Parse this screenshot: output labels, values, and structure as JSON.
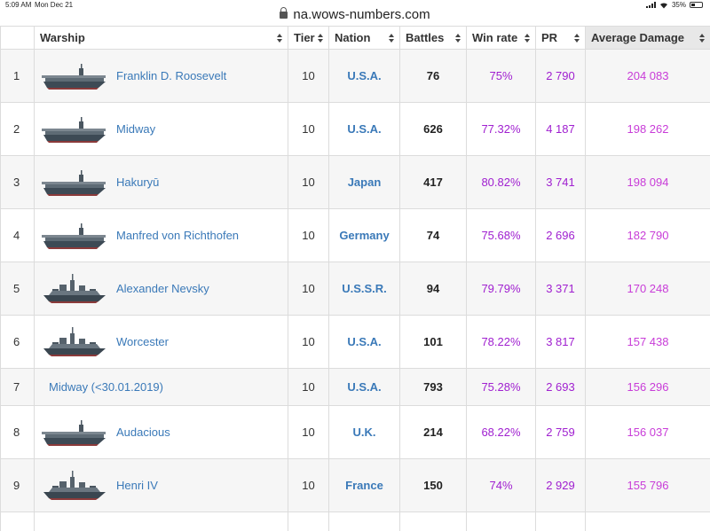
{
  "status_bar": {
    "time": "5:09 AM",
    "date": "Mon Dec 21",
    "battery": "35%",
    "battery_level": 0.35
  },
  "browser": {
    "url": "na.wows-numbers.com"
  },
  "table": {
    "headers": {
      "warship": "Warship",
      "tier": "Tier",
      "nation": "Nation",
      "battles": "Battles",
      "win_rate": "Win rate",
      "pr": "PR",
      "average_damage": "Average Damage"
    },
    "rows": [
      {
        "rank": "1",
        "warship": "Franklin D. Roosevelt",
        "ship_type": "carrier",
        "tier": "10",
        "nation": "U.S.A.",
        "battles": "76",
        "win_rate": "75%",
        "pr": "2 790",
        "average_damage": "204 083"
      },
      {
        "rank": "2",
        "warship": "Midway",
        "ship_type": "carrier",
        "tier": "10",
        "nation": "U.S.A.",
        "battles": "626",
        "win_rate": "77.32%",
        "pr": "4 187",
        "average_damage": "198 262"
      },
      {
        "rank": "3",
        "warship": "Hakuryū",
        "ship_type": "carrier",
        "tier": "10",
        "nation": "Japan",
        "battles": "417",
        "win_rate": "80.82%",
        "pr": "3 741",
        "average_damage": "198 094"
      },
      {
        "rank": "4",
        "warship": "Manfred von Richthofen",
        "ship_type": "carrier",
        "tier": "10",
        "nation": "Germany",
        "battles": "74",
        "win_rate": "75.68%",
        "pr": "2 696",
        "average_damage": "182 790"
      },
      {
        "rank": "5",
        "warship": "Alexander Nevsky",
        "ship_type": "cruiser",
        "tier": "10",
        "nation": "U.S.S.R.",
        "battles": "94",
        "win_rate": "79.79%",
        "pr": "3 371",
        "average_damage": "170 248"
      },
      {
        "rank": "6",
        "warship": "Worcester",
        "ship_type": "cruiser",
        "tier": "10",
        "nation": "U.S.A.",
        "battles": "101",
        "win_rate": "78.22%",
        "pr": "3 817",
        "average_damage": "157 438"
      },
      {
        "rank": "7",
        "warship": "Midway (<30.01.2019)",
        "ship_type": "none",
        "tier": "10",
        "nation": "U.S.A.",
        "battles": "793",
        "win_rate": "75.28%",
        "pr": "2 693",
        "average_damage": "156 296"
      },
      {
        "rank": "8",
        "warship": "Audacious",
        "ship_type": "carrier",
        "tier": "10",
        "nation": "U.K.",
        "battles": "214",
        "win_rate": "68.22%",
        "pr": "2 759",
        "average_damage": "156 037"
      },
      {
        "rank": "9",
        "warship": "Henri IV",
        "ship_type": "cruiser",
        "tier": "10",
        "nation": "France",
        "battles": "150",
        "win_rate": "74%",
        "pr": "2 929",
        "average_damage": "155 796"
      }
    ]
  },
  "colors": {
    "link": "#3a79b8",
    "win_rate": "#a020d0",
    "pr": "#a020d0",
    "average_damage": "#c83cd8",
    "sorted_header_bg": "#e8e8e8"
  }
}
